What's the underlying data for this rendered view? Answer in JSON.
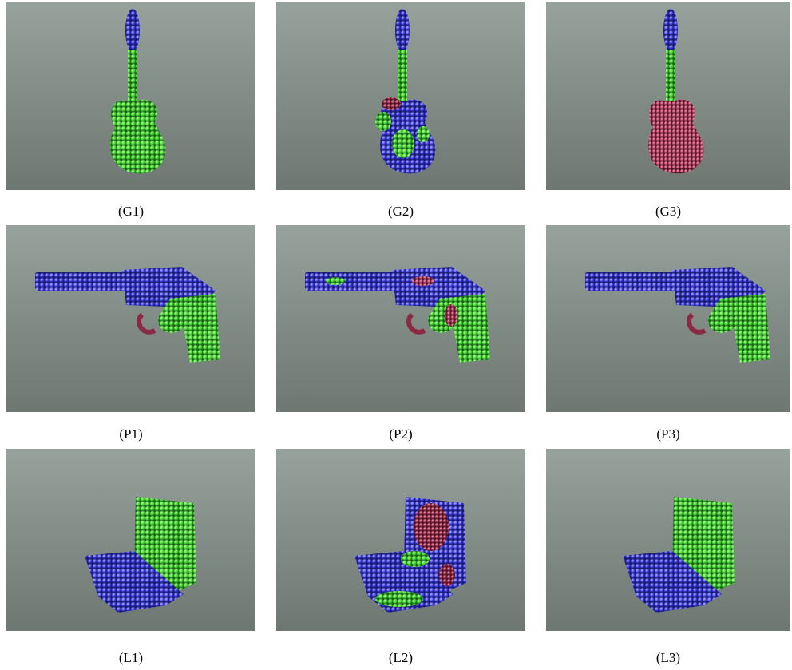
{
  "panels": [
    {
      "label": "(G1)"
    },
    {
      "label": "(G2)"
    },
    {
      "label": "(G3)"
    },
    {
      "label": "(P1)"
    },
    {
      "label": "(P2)"
    },
    {
      "label": "(P3)"
    },
    {
      "label": "(L1)"
    },
    {
      "label": "(L2)"
    },
    {
      "label": "(L3)"
    }
  ]
}
